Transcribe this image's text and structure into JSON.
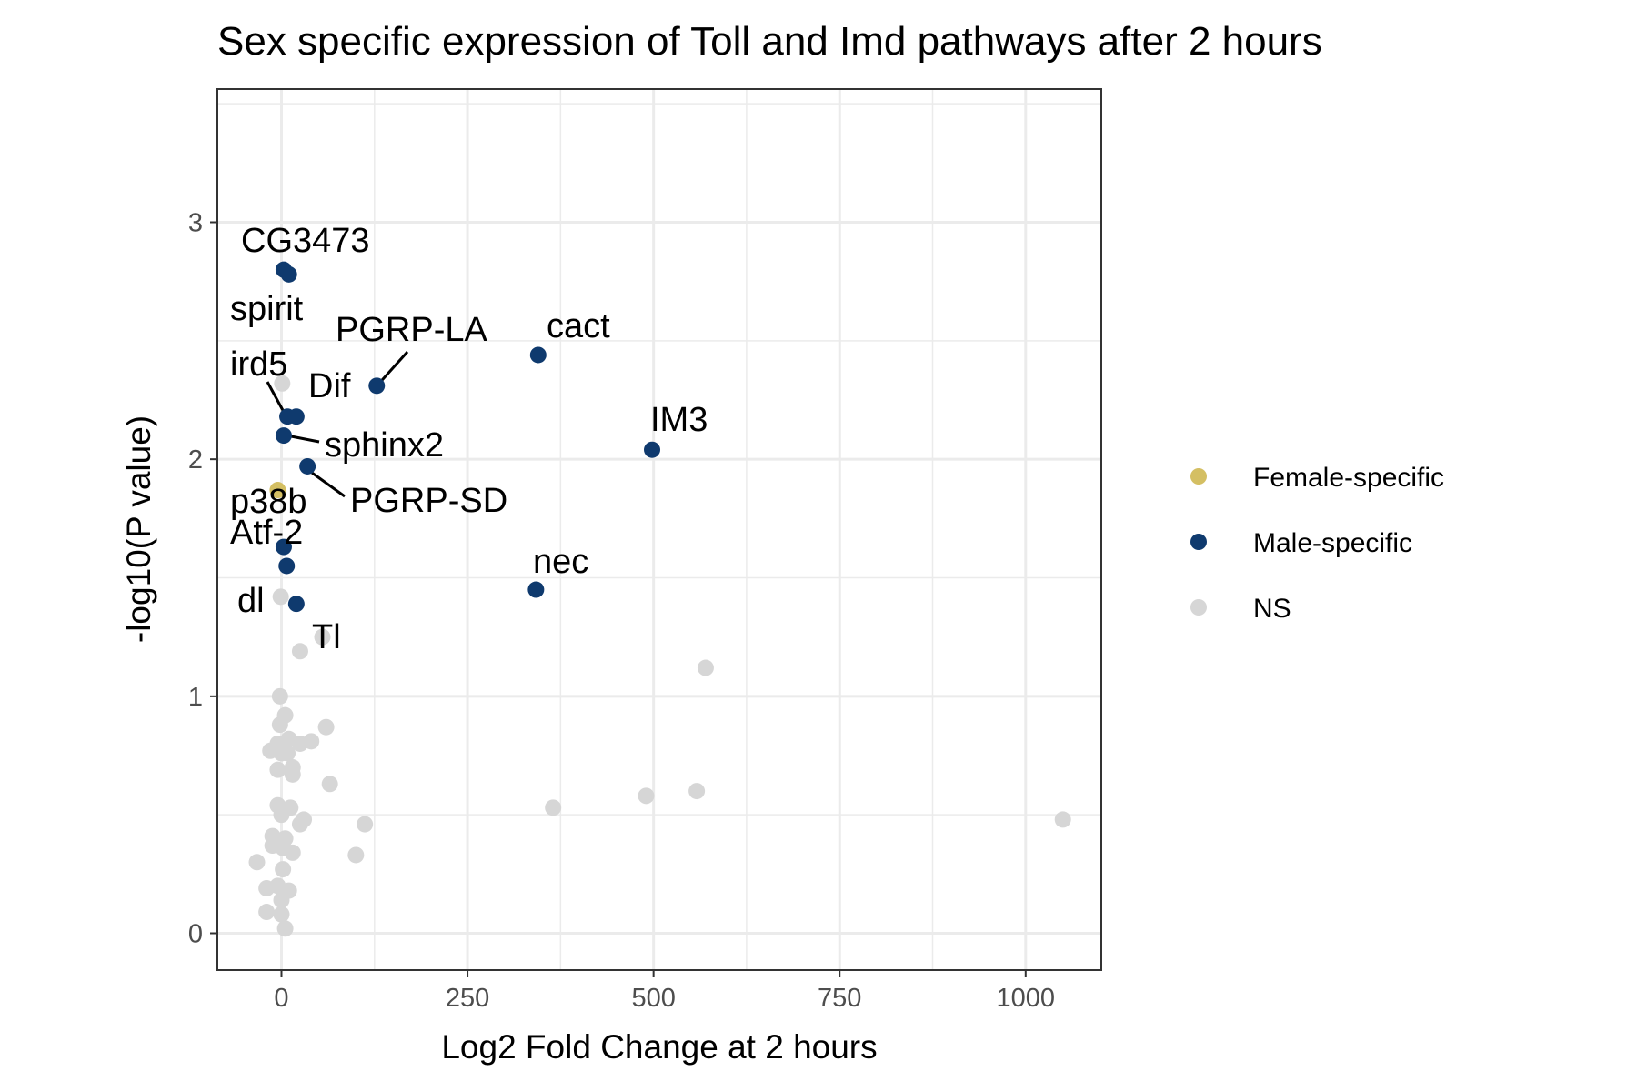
{
  "chart_data": {
    "type": "scatter",
    "title": "Sex specific expression of Toll and Imd pathways after 2 hours",
    "xlabel": "Log2 Fold Change at 2 hours",
    "ylabel": "-log10(P value)",
    "xlim": [
      -85,
      1105
    ],
    "ylim": [
      -0.16,
      3.55
    ],
    "x_ticks": [
      0,
      250,
      500,
      750,
      1000
    ],
    "y_ticks": [
      0,
      1,
      2,
      3
    ],
    "x_tick_labels": [
      "0",
      "250",
      "500",
      "750",
      "1000"
    ],
    "y_tick_labels": [
      "0",
      "1",
      "2",
      "3"
    ],
    "grid": true,
    "legend_position": "right",
    "legend": [
      {
        "label": "Female-specific",
        "color": "#d4bf63"
      },
      {
        "label": "Male-specific",
        "color": "#0f3a6e"
      },
      {
        "label": "NS",
        "color": "#d6d6d6"
      }
    ],
    "series": [
      {
        "name": "NS",
        "color": "#d6d6d6",
        "points": [
          [
            1,
            2.32
          ],
          [
            -1,
            1.42
          ],
          [
            55,
            1.25
          ],
          [
            25,
            1.19
          ],
          [
            570,
            1.12
          ],
          [
            -2,
            1.0
          ],
          [
            -2,
            0.88
          ],
          [
            5,
            0.92
          ],
          [
            60,
            0.87
          ],
          [
            -15,
            0.77
          ],
          [
            -5,
            0.8
          ],
          [
            10,
            0.82
          ],
          [
            25,
            0.8
          ],
          [
            40,
            0.81
          ],
          [
            0,
            0.76
          ],
          [
            8,
            0.76
          ],
          [
            15,
            0.7
          ],
          [
            -5,
            0.69
          ],
          [
            15,
            0.67
          ],
          [
            65,
            0.63
          ],
          [
            558,
            0.6
          ],
          [
            490,
            0.58
          ],
          [
            365,
            0.53
          ],
          [
            1050,
            0.48
          ],
          [
            -5,
            0.54
          ],
          [
            12,
            0.53
          ],
          [
            0,
            0.5
          ],
          [
            30,
            0.48
          ],
          [
            25,
            0.46
          ],
          [
            112,
            0.46
          ],
          [
            -12,
            0.41
          ],
          [
            5,
            0.4
          ],
          [
            -12,
            0.37
          ],
          [
            2,
            0.36
          ],
          [
            15,
            0.34
          ],
          [
            100,
            0.33
          ],
          [
            -33,
            0.3
          ],
          [
            2,
            0.27
          ],
          [
            -20,
            0.19
          ],
          [
            -5,
            0.2
          ],
          [
            10,
            0.18
          ],
          [
            0,
            0.14
          ],
          [
            -20,
            0.09
          ],
          [
            0,
            0.08
          ],
          [
            5,
            0.02
          ]
        ]
      },
      {
        "name": "Female-specific",
        "color": "#d4bf63",
        "points": [
          [
            -5,
            1.87
          ]
        ]
      },
      {
        "name": "Male-specific",
        "color": "#0f3a6e",
        "points": [
          [
            3,
            2.8
          ],
          [
            10,
            2.78
          ],
          [
            345,
            2.44
          ],
          [
            128,
            2.31
          ],
          [
            8,
            2.18
          ],
          [
            20,
            2.18
          ],
          [
            3,
            2.1
          ],
          [
            498,
            2.04
          ],
          [
            35,
            1.97
          ],
          [
            3,
            1.63
          ],
          [
            7,
            1.55
          ],
          [
            342,
            1.45
          ],
          [
            20,
            1.39
          ]
        ]
      }
    ],
    "annotations": [
      {
        "text": "CG3473",
        "x": 10,
        "y": 2.78
      },
      {
        "text": "spirit",
        "x": 3,
        "y": 2.8
      },
      {
        "text": "PGRP-LA",
        "x": 128,
        "y": 2.31
      },
      {
        "text": "cact",
        "x": 345,
        "y": 2.44
      },
      {
        "text": "ird5",
        "x": 8,
        "y": 2.18
      },
      {
        "text": "Dif",
        "x": 20,
        "y": 2.18
      },
      {
        "text": "IM3",
        "x": 498,
        "y": 2.04
      },
      {
        "text": "sphinx2",
        "x": 3,
        "y": 2.1
      },
      {
        "text": "PGRP-SD",
        "x": 35,
        "y": 1.97
      },
      {
        "text": "p38b",
        "x": -5,
        "y": 1.87
      },
      {
        "text": "Atf-2",
        "x": 3,
        "y": 1.63
      },
      {
        "text": "nec",
        "x": 342,
        "y": 1.45
      },
      {
        "text": "dl",
        "x": 7,
        "y": 1.55
      },
      {
        "text": "Tl",
        "x": 20,
        "y": 1.39
      }
    ]
  }
}
